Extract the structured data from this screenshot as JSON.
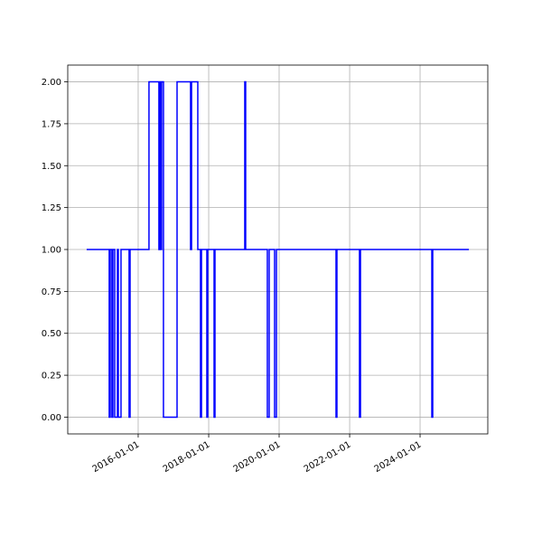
{
  "chart_data": {
    "type": "step",
    "color": "#0000ff",
    "grid": true,
    "x": [
      "2014-07-16",
      "2015-03-07",
      "2015-03-17",
      "2015-04-04",
      "2015-04-14",
      "2015-05-03",
      "2015-05-12",
      "2015-05-31",
      "2015-06-09",
      "2015-07-07",
      "2015-09-29",
      "2015-10-09",
      "2016-04-22",
      "2016-08-03",
      "2016-08-13",
      "2016-08-22",
      "2016-08-31",
      "2016-09-19",
      "2017-02-07",
      "2017-06-27",
      "2017-07-07",
      "2017-09-10",
      "2017-10-08",
      "2017-10-18",
      "2017-12-13",
      "2017-12-22",
      "2018-02-26",
      "2018-03-07",
      "2019-01-10",
      "2019-01-19",
      "2019-09-01",
      "2019-09-20",
      "2019-11-15",
      "2019-12-04",
      "2021-08-13",
      "2021-08-22",
      "2022-04-13",
      "2022-04-23",
      "2024-05-02",
      "2024-05-11",
      "2025-05-21"
    ],
    "values": [
      1,
      0,
      1,
      0,
      1,
      0,
      0,
      1,
      0,
      1,
      0,
      1,
      2,
      1,
      2,
      1,
      2,
      0,
      2,
      1,
      2,
      1,
      0,
      1,
      0,
      1,
      0,
      1,
      2,
      1,
      0,
      1,
      0,
      1,
      0,
      1,
      0,
      1,
      0,
      1,
      1
    ],
    "xlim": [
      "2014-01-01",
      "2025-12-03"
    ],
    "xticks": [
      "2016-01-01",
      "2018-01-01",
      "2020-01-01",
      "2022-01-01",
      "2024-01-01"
    ],
    "ylim": [
      -0.1,
      2.1
    ],
    "yticks": [
      {
        "value": 0,
        "label": "0.00"
      },
      {
        "value": 0.25,
        "label": "0.25"
      },
      {
        "value": 0.5,
        "label": "0.50"
      },
      {
        "value": 0.75,
        "label": "0.75"
      },
      {
        "value": 1,
        "label": "1.00"
      },
      {
        "value": 1.25,
        "label": "1.25"
      },
      {
        "value": 1.5,
        "label": "1.50"
      },
      {
        "value": 1.75,
        "label": "1.75"
      },
      {
        "value": 2,
        "label": "2.00"
      }
    ]
  }
}
